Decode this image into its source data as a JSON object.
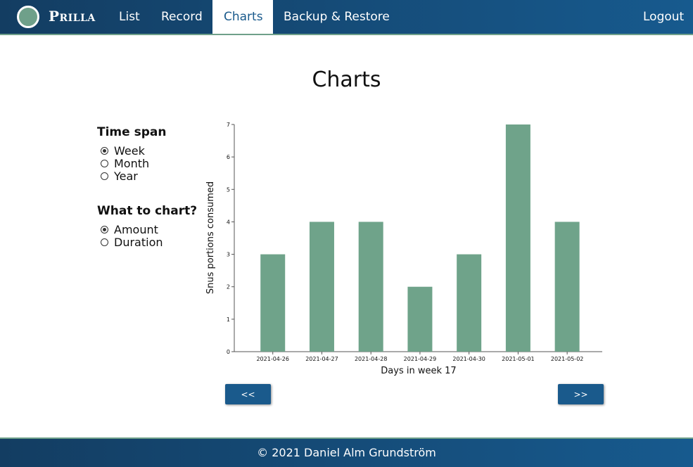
{
  "nav": {
    "brand": "Prilla",
    "items": [
      {
        "label": "List",
        "active": false
      },
      {
        "label": "Record",
        "active": false
      },
      {
        "label": "Charts",
        "active": true
      },
      {
        "label": "Backup & Restore",
        "active": false
      }
    ],
    "logout_label": "Logout"
  },
  "page": {
    "title": "Charts"
  },
  "controls": {
    "time_span": {
      "heading": "Time span",
      "options": [
        "Week",
        "Month",
        "Year"
      ],
      "selected": "Week"
    },
    "what_to_chart": {
      "heading": "What to chart?",
      "options": [
        "Amount",
        "Duration"
      ],
      "selected": "Amount"
    }
  },
  "chart_data": {
    "type": "bar",
    "categories": [
      "2021-04-26",
      "2021-04-27",
      "2021-04-28",
      "2021-04-29",
      "2021-04-30",
      "2021-05-01",
      "2021-05-02"
    ],
    "values": [
      3,
      4,
      4,
      2,
      3,
      7,
      4
    ],
    "title": "",
    "xlabel": "Days in week 17",
    "ylabel": "Snus portions consumed",
    "ylim": [
      0,
      7
    ],
    "yticks": [
      0,
      1,
      2,
      3,
      4,
      5,
      6,
      7
    ],
    "grid": false,
    "bar_color": "#6fa38a"
  },
  "pager": {
    "prev_label": "<<",
    "next_label": ">>"
  },
  "footer": {
    "text": "© 2021 Daniel Alm Grundström"
  },
  "colors": {
    "nav_bg": "#175a8e",
    "accent": "#6fa08a",
    "button_bg": "#1a5a8c"
  }
}
